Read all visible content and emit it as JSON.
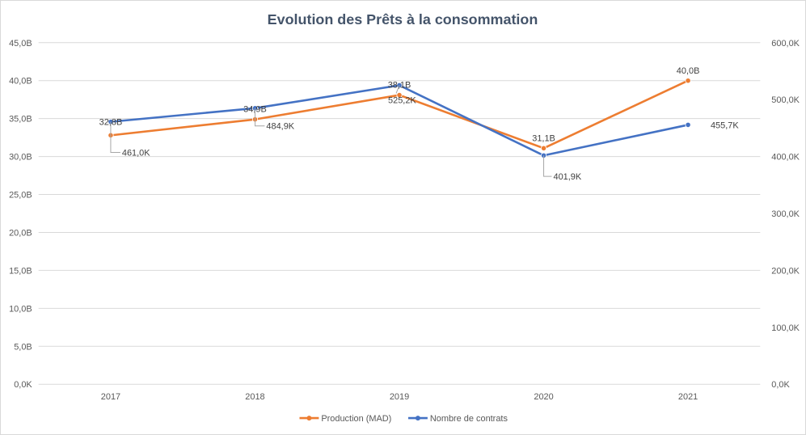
{
  "chart_data": {
    "type": "line",
    "title": "Evolution  des Prêts à la consommation",
    "categories": [
      "2017",
      "2018",
      "2019",
      "2020",
      "2021"
    ],
    "y_left": {
      "ylim": [
        0,
        45
      ],
      "ticks": [
        0,
        5,
        10,
        15,
        20,
        25,
        30,
        35,
        40,
        45
      ],
      "tick_labels": [
        "0,0K",
        "5,0B",
        "10,0B",
        "15,0B",
        "20,0B",
        "25,0B",
        "30,0B",
        "35,0B",
        "40,0B",
        "45,0B"
      ]
    },
    "y_right": {
      "ylim": [
        0,
        600
      ],
      "ticks": [
        0,
        100,
        200,
        300,
        400,
        500,
        600
      ],
      "tick_labels": [
        "0,0K",
        "100,0K",
        "200,0K",
        "300,0K",
        "400,0K",
        "500,0K",
        "600,0K"
      ]
    },
    "series": [
      {
        "name": "Production (MAD)",
        "axis": "left",
        "color": "#ed7d31",
        "values": [
          32.8,
          34.9,
          38.1,
          31.1,
          40.0
        ],
        "labels": [
          "32,8B",
          "34,9B",
          "38,1B",
          "31,1B",
          "40,0B"
        ]
      },
      {
        "name": "Nombre de contrats",
        "axis": "right",
        "color": "#4472c4",
        "values": [
          461.0,
          484.9,
          525.2,
          401.9,
          455.7
        ],
        "labels": [
          "461,0K",
          "484,9K",
          "525,2K",
          "401,9K",
          "455,7K"
        ]
      }
    ],
    "grid": true,
    "legend_position": "bottom"
  }
}
